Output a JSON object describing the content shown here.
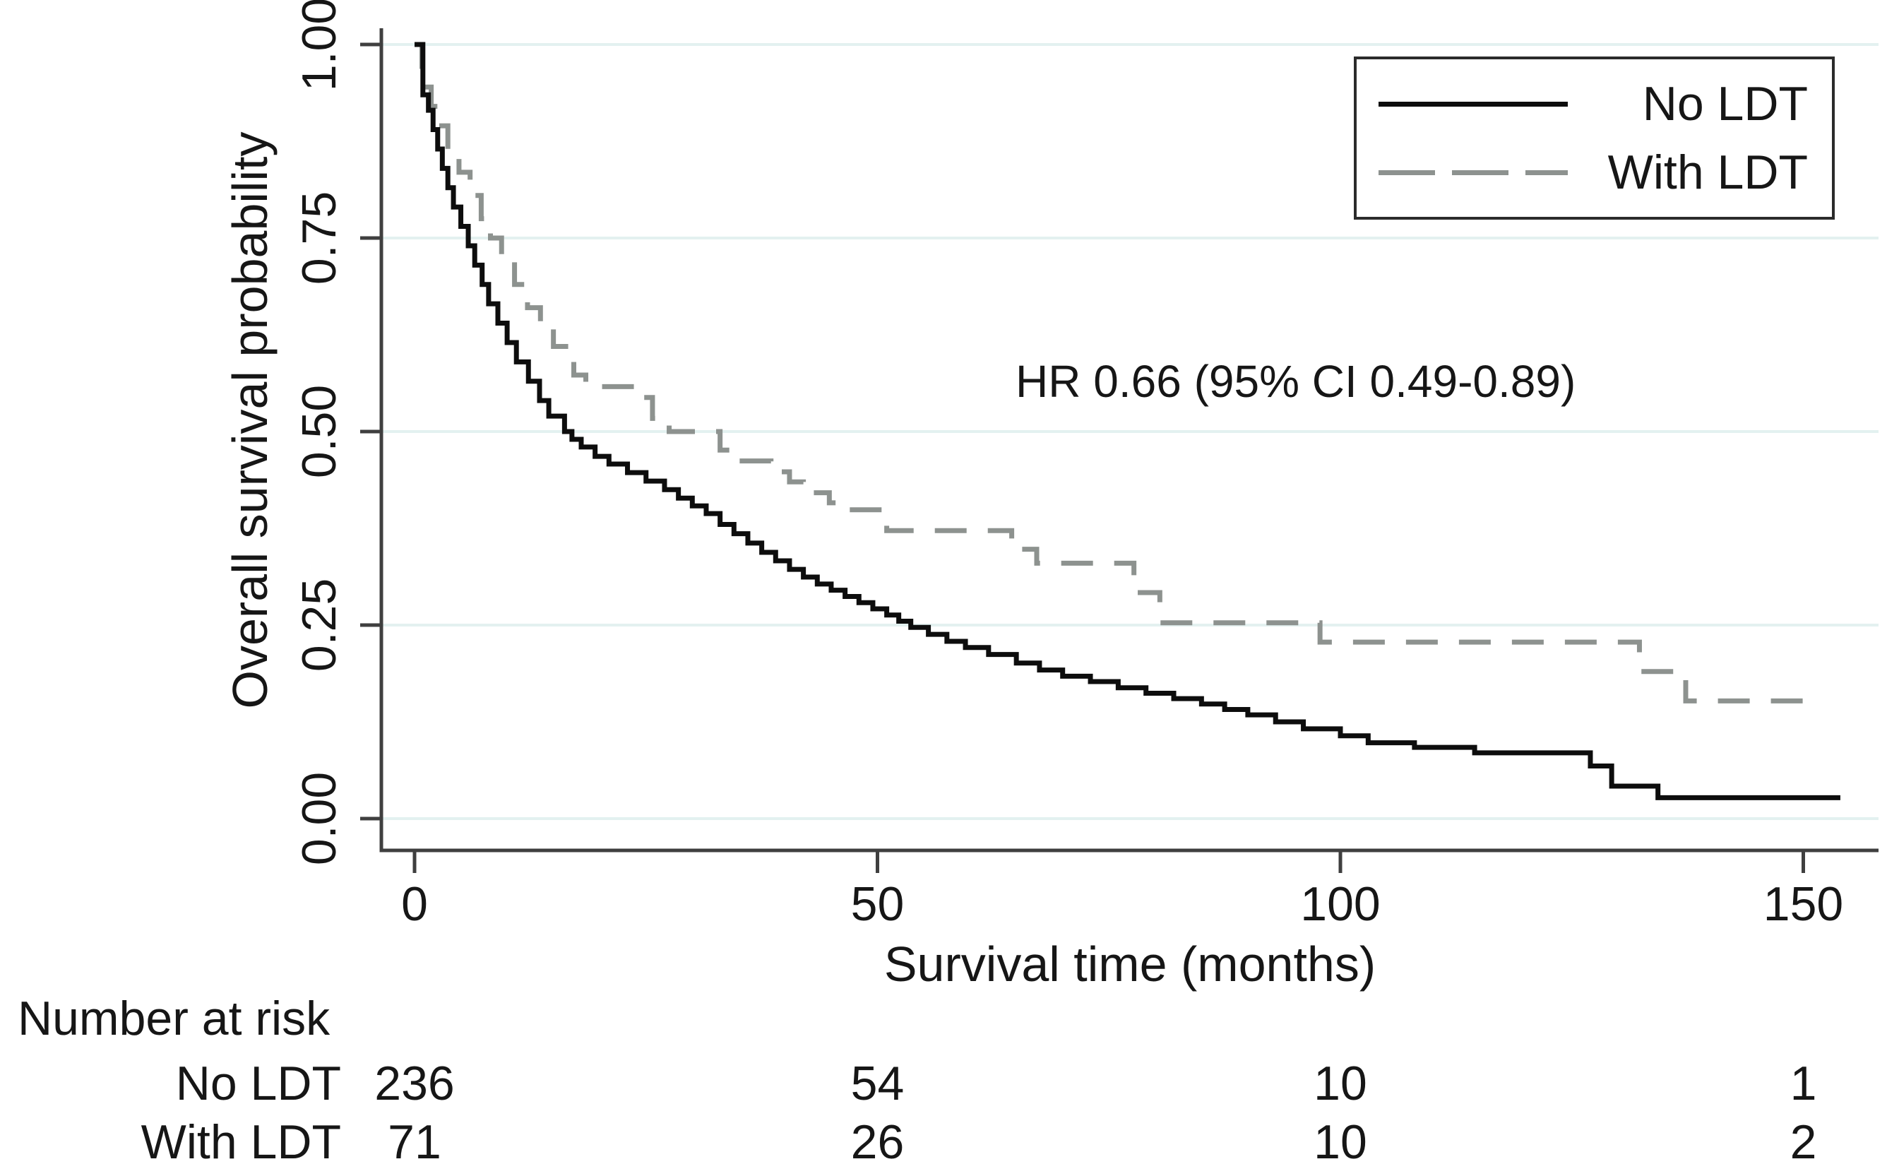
{
  "chart_data": {
    "type": "line",
    "subtype": "kaplan_meier_step",
    "title": "",
    "xlabel": "Survival time (months)",
    "ylabel": "Overall survival probability",
    "xlim": [
      0,
      158
    ],
    "ylim": [
      0,
      1.0
    ],
    "grid": "horizontal",
    "x_ticks": [
      {
        "v": 0,
        "label": "0"
      },
      {
        "v": 50,
        "label": "50"
      },
      {
        "v": 100,
        "label": "100"
      },
      {
        "v": 150,
        "label": "150"
      }
    ],
    "y_ticks": [
      {
        "v": 1.0,
        "label": "1.00"
      },
      {
        "v": 0.75,
        "label": "0.75"
      },
      {
        "v": 0.5,
        "label": "0.50"
      },
      {
        "v": 0.25,
        "label": "0.25"
      },
      {
        "v": 0.0,
        "label": "0.00"
      }
    ],
    "annotation": {
      "text": "HR 0.66 (95% CI 0.49-0.89)",
      "x_months": 65,
      "y_prob": 0.57
    },
    "legend": {
      "position": "top-right",
      "entries": [
        {
          "label": "No LDT",
          "line_style": "solid",
          "color": "#0d0d0d"
        },
        {
          "label": "With LDT",
          "line_style": "dashed",
          "color": "#8d928f"
        }
      ]
    },
    "colors": {
      "grid": "#e3f1f0",
      "axis": "#3f3f3f",
      "text": "#161616",
      "no_ldt": "#0d0d0d",
      "with_ldt": "#8d928f"
    },
    "series": [
      {
        "name": "No LDT",
        "style": "solid",
        "color": "#0d0d0d",
        "t_end": 154,
        "steps": [
          [
            0,
            1.0
          ],
          [
            0.9,
            0.935
          ],
          [
            1.5,
            0.915
          ],
          [
            2,
            0.89
          ],
          [
            2.5,
            0.865
          ],
          [
            3,
            0.84
          ],
          [
            3.6,
            0.815
          ],
          [
            4.2,
            0.79
          ],
          [
            5,
            0.765
          ],
          [
            5.8,
            0.74
          ],
          [
            6.5,
            0.715
          ],
          [
            7.3,
            0.69
          ],
          [
            8,
            0.665
          ],
          [
            9,
            0.64
          ],
          [
            10,
            0.615
          ],
          [
            11,
            0.59
          ],
          [
            12.3,
            0.565
          ],
          [
            13.5,
            0.54
          ],
          [
            14.5,
            0.52
          ],
          [
            16.2,
            0.5
          ],
          [
            17,
            0.49
          ],
          [
            18,
            0.48
          ],
          [
            19.5,
            0.468
          ],
          [
            21,
            0.458
          ],
          [
            23,
            0.447
          ],
          [
            25,
            0.436
          ],
          [
            27,
            0.425
          ],
          [
            28.5,
            0.414
          ],
          [
            30,
            0.404
          ],
          [
            31.5,
            0.394
          ],
          [
            33,
            0.38
          ],
          [
            34.5,
            0.368
          ],
          [
            36,
            0.356
          ],
          [
            37.5,
            0.344
          ],
          [
            39,
            0.333
          ],
          [
            40.5,
            0.322
          ],
          [
            42,
            0.312
          ],
          [
            43.5,
            0.303
          ],
          [
            45,
            0.295
          ],
          [
            46.5,
            0.287
          ],
          [
            48,
            0.279
          ],
          [
            49.5,
            0.271
          ],
          [
            51,
            0.263
          ],
          [
            52.3,
            0.255
          ],
          [
            53.6,
            0.247
          ],
          [
            55.5,
            0.238
          ],
          [
            57.5,
            0.229
          ],
          [
            59.5,
            0.221
          ],
          [
            62,
            0.212
          ],
          [
            65,
            0.201
          ],
          [
            67.5,
            0.192
          ],
          [
            70,
            0.184
          ],
          [
            73,
            0.177
          ],
          [
            76,
            0.169
          ],
          [
            79,
            0.162
          ],
          [
            82,
            0.155
          ],
          [
            85,
            0.148
          ],
          [
            87.5,
            0.141
          ],
          [
            90,
            0.134
          ],
          [
            93,
            0.125
          ],
          [
            96,
            0.116
          ],
          [
            100,
            0.107
          ],
          [
            103,
            0.098
          ],
          [
            108,
            0.092
          ],
          [
            114.5,
            0.085
          ],
          [
            127,
            0.068
          ],
          [
            129.3,
            0.042
          ],
          [
            134.3,
            0.027
          ]
        ]
      },
      {
        "name": "With LDT",
        "style": "dashed",
        "color": "#8d928f",
        "t_end": 151,
        "steps": [
          [
            0,
            1.0
          ],
          [
            0.8,
            0.945
          ],
          [
            1.8,
            0.92
          ],
          [
            2.6,
            0.895
          ],
          [
            3.6,
            0.865
          ],
          [
            4.8,
            0.835
          ],
          [
            6,
            0.805
          ],
          [
            7.2,
            0.775
          ],
          [
            8.2,
            0.75
          ],
          [
            9.4,
            0.72
          ],
          [
            10.8,
            0.69
          ],
          [
            12.2,
            0.66
          ],
          [
            13.6,
            0.635
          ],
          [
            15,
            0.61
          ],
          [
            17.2,
            0.573
          ],
          [
            18.5,
            0.558
          ],
          [
            24,
            0.544
          ],
          [
            25.7,
            0.517
          ],
          [
            27.5,
            0.5
          ],
          [
            33,
            0.476
          ],
          [
            34.7,
            0.462
          ],
          [
            38.5,
            0.448
          ],
          [
            40.5,
            0.435
          ],
          [
            42,
            0.421
          ],
          [
            44.8,
            0.408
          ],
          [
            46,
            0.399
          ],
          [
            51,
            0.372
          ],
          [
            64.5,
            0.348
          ],
          [
            67.2,
            0.33
          ],
          [
            77.7,
            0.292
          ],
          [
            80.5,
            0.253
          ],
          [
            97.8,
            0.228
          ],
          [
            132.3,
            0.19
          ],
          [
            137.3,
            0.152
          ]
        ]
      }
    ],
    "risk_table": {
      "header": "Number at risk",
      "time_points": [
        0,
        50,
        100,
        150
      ],
      "rows": [
        {
          "label": "No LDT",
          "values": [
            "236",
            "54",
            "10",
            "1"
          ]
        },
        {
          "label": "With LDT",
          "values": [
            "71",
            "26",
            "10",
            "2"
          ]
        }
      ]
    }
  }
}
